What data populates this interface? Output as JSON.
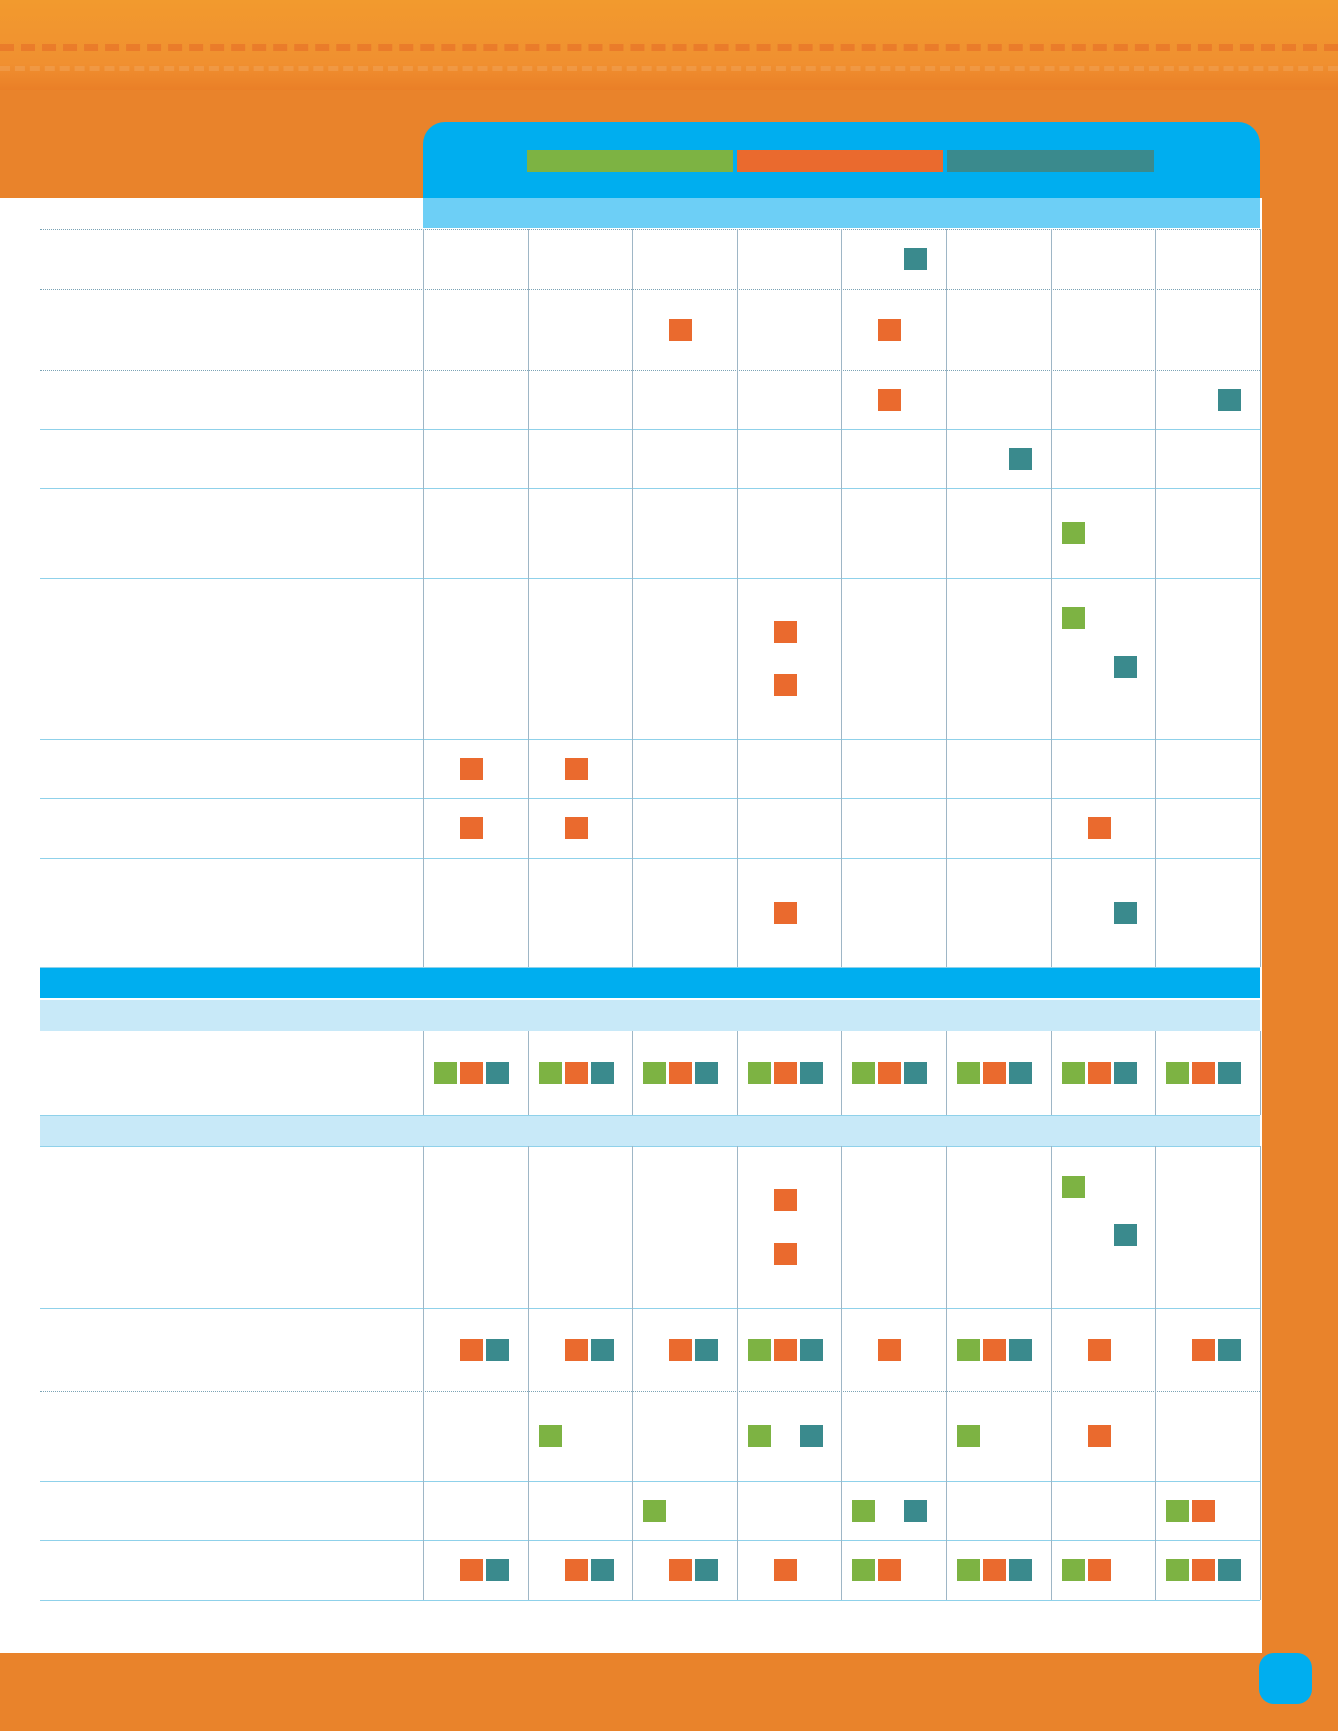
{
  "colors": {
    "green": "#7db343",
    "orange": "#ea6a2e",
    "teal": "#3a8a8d",
    "blue": "#00aeef",
    "light_blue": "#6dcff6"
  },
  "legend": [
    "green",
    "orange",
    "teal"
  ],
  "table": {
    "columns": 8,
    "rows_top": [
      [
        [],
        [],
        [],
        [],
        [
          "teal"
        ],
        [],
        [],
        []
      ],
      [
        [],
        [],
        [
          "orange"
        ],
        [],
        [
          "orange"
        ],
        [],
        [],
        []
      ],
      [
        [],
        [],
        [],
        [],
        [
          "orange"
        ],
        [],
        [],
        [
          "teal"
        ]
      ],
      [
        [],
        [],
        [],
        [],
        [],
        [
          "teal"
        ],
        [],
        []
      ],
      [
        [],
        [],
        [],
        [],
        [],
        [],
        [
          "green"
        ],
        []
      ],
      [
        [],
        [],
        [],
        [
          "orange",
          "orange"
        ],
        [],
        [],
        [
          "green",
          "teal"
        ],
        []
      ],
      [
        [
          "orange"
        ],
        [
          "orange"
        ],
        [],
        [],
        [],
        [],
        [],
        []
      ],
      [
        [
          "orange"
        ],
        [
          "orange"
        ],
        [],
        [],
        [],
        [],
        [
          "orange"
        ],
        []
      ],
      [
        [],
        [],
        [],
        [
          "orange"
        ],
        [],
        [],
        [
          "teal"
        ],
        []
      ]
    ],
    "rows_section_a": [
      [
        [
          "green",
          "orange",
          "teal"
        ],
        [
          "green",
          "orange",
          "teal"
        ],
        [
          "green",
          "orange",
          "teal"
        ],
        [
          "green",
          "orange",
          "teal"
        ],
        [
          "green",
          "orange",
          "teal"
        ],
        [
          "green",
          "orange",
          "teal"
        ],
        [
          "green",
          "orange",
          "teal"
        ],
        [
          "green",
          "orange",
          "teal"
        ]
      ]
    ],
    "rows_section_b": [
      [
        [],
        [],
        [],
        [
          "orange",
          "orange"
        ],
        [],
        [],
        [
          "green",
          "teal"
        ],
        []
      ],
      [
        [
          "orange",
          "teal"
        ],
        [
          "orange",
          "teal"
        ],
        [
          "orange",
          "teal"
        ],
        [
          "green",
          "orange",
          "teal"
        ],
        [
          "orange"
        ],
        [
          "green",
          "orange",
          "teal"
        ],
        [
          "orange"
        ],
        [
          "orange",
          "teal"
        ]
      ],
      [
        [],
        [
          "green"
        ],
        [],
        [
          "green",
          "teal"
        ],
        [],
        [
          "green"
        ],
        [
          "orange"
        ],
        []
      ],
      [
        [],
        [],
        [
          "green"
        ],
        [],
        [
          "green",
          "teal"
        ],
        [],
        [],
        [
          "green",
          "orange"
        ]
      ],
      [
        [
          "orange",
          "teal"
        ],
        [
          "orange",
          "teal"
        ],
        [
          "orange",
          "teal"
        ],
        [
          "orange"
        ],
        [
          "green",
          "orange"
        ],
        [
          "green",
          "orange",
          "teal"
        ],
        [
          "green",
          "orange"
        ],
        [
          "green",
          "orange",
          "teal"
        ]
      ]
    ]
  }
}
